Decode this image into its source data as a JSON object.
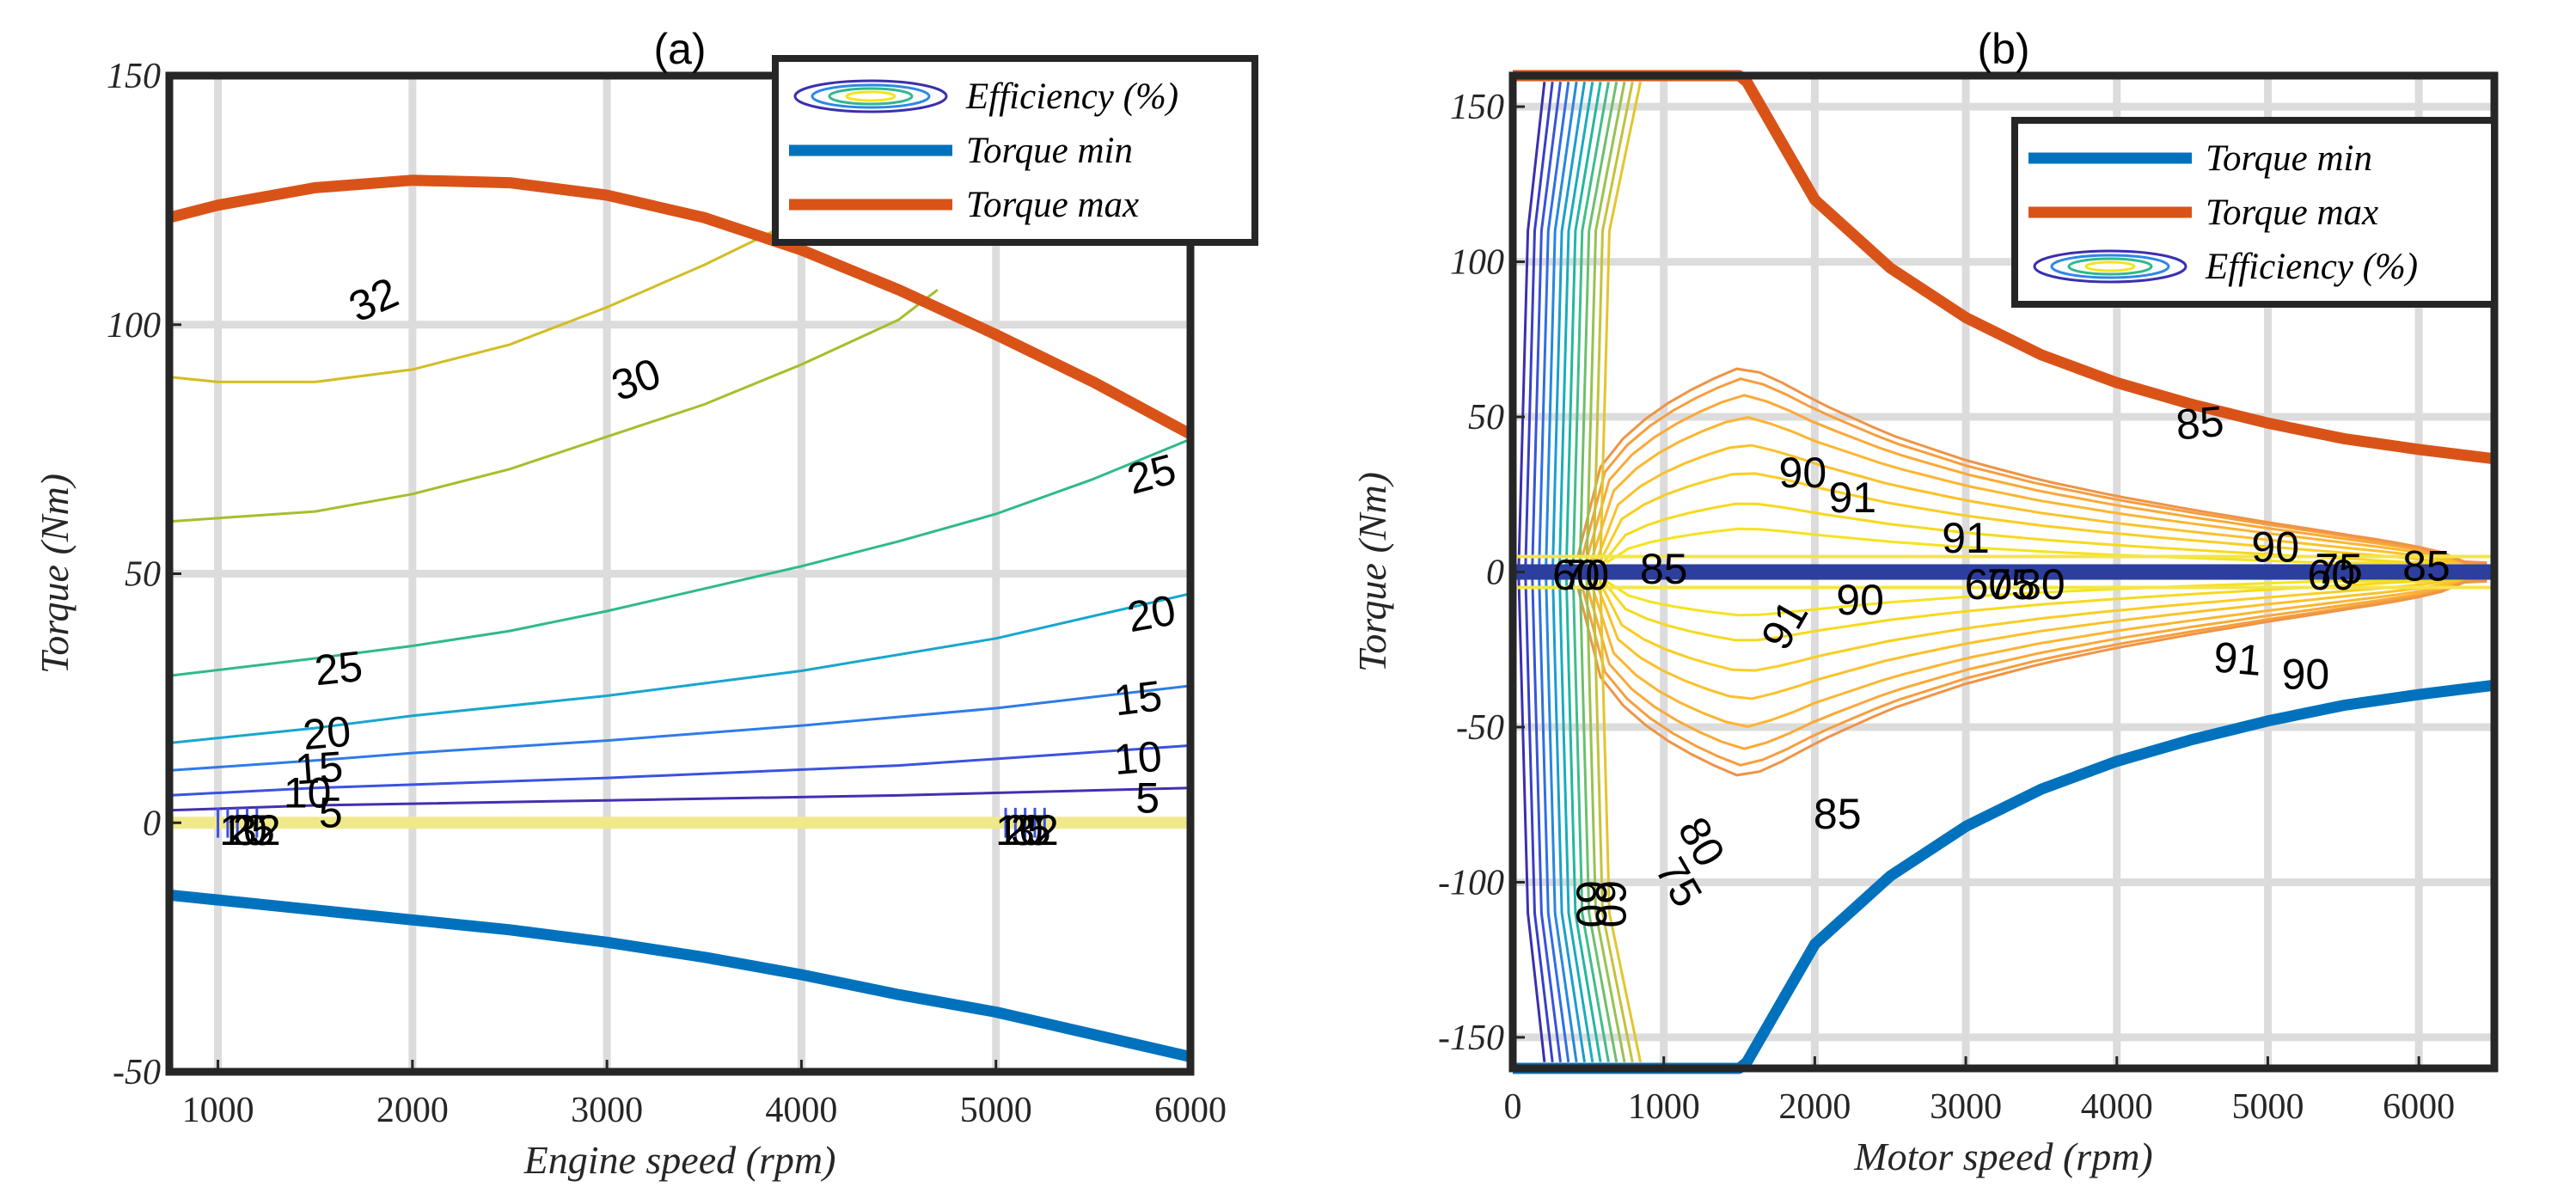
{
  "chart_data": [
    {
      "type": "line",
      "title": "(a)",
      "xlabel": "Engine speed (rpm)",
      "ylabel": "Torque (Nm)",
      "xlim": [
        750,
        6000
      ],
      "ylim": [
        -50,
        150
      ],
      "xticks": [
        1000,
        2000,
        3000,
        4000,
        5000,
        6000
      ],
      "yticks": [
        -50,
        0,
        50,
        100,
        150
      ],
      "grid": true,
      "legend_position": "top-right",
      "legend": [
        {
          "key": "efficiency",
          "label": "Efficiency (%)",
          "kind": "contour"
        },
        {
          "key": "min",
          "label": "Torque min",
          "kind": "line",
          "color": "#0072bd"
        },
        {
          "key": "max",
          "label": "Torque max",
          "kind": "line",
          "color": "#d95319"
        }
      ],
      "series": [
        {
          "name": "Torque max",
          "color": "#d95319",
          "width": 13,
          "x": [
            750,
            1000,
            1500,
            2000,
            2500,
            3000,
            3500,
            4000,
            4500,
            5000,
            5500,
            6000
          ],
          "y": [
            121.5,
            124,
            127.5,
            129,
            128.5,
            126,
            121.5,
            115,
            107,
            98,
            88.5,
            78
          ]
        },
        {
          "name": "Torque min",
          "color": "#0072bd",
          "width": 13,
          "x": [
            750,
            1000,
            1500,
            2000,
            2500,
            3000,
            3500,
            4000,
            4500,
            5000,
            5500,
            6000
          ],
          "y": [
            -14.5,
            -15.5,
            -17.5,
            -19.5,
            -21.5,
            -24,
            -27,
            -30.5,
            -34.5,
            -38,
            -42.5,
            -47
          ]
        }
      ],
      "contours": [
        {
          "level": 32,
          "color": "#d2bd23",
          "x": [
            750,
            1000,
            1500,
            2000,
            2500,
            3000,
            3500,
            4000
          ],
          "y": [
            89.5,
            88.5,
            88.5,
            91,
            96,
            103.5,
            112,
            121.5
          ]
        },
        {
          "level": 30,
          "color": "#a8bd2a",
          "x": [
            750,
            1500,
            2000,
            2500,
            3000,
            3500,
            4000,
            4500,
            4700
          ],
          "y": [
            60.5,
            62.5,
            66,
            71,
            77.5,
            84,
            92,
            101,
            107
          ]
        },
        {
          "level": 25,
          "color": "#2fb98d",
          "x": [
            750,
            1500,
            2000,
            2500,
            3000,
            3500,
            4000,
            4500,
            5000,
            5500,
            6000
          ],
          "y": [
            29.5,
            33,
            35.5,
            38.5,
            42.5,
            47,
            51.5,
            56.5,
            62,
            69,
            77
          ]
        },
        {
          "level": 20,
          "color": "#17a6cf",
          "x": [
            750,
            1500,
            2000,
            3000,
            4000,
            5000,
            6000
          ],
          "y": [
            16,
            19,
            21.5,
            25.5,
            30.5,
            37,
            46
          ]
        },
        {
          "level": 15,
          "color": "#2d7ce8",
          "x": [
            750,
            1500,
            2000,
            3000,
            4000,
            5000,
            6000
          ],
          "y": [
            10.5,
            12.5,
            14,
            16.5,
            19.5,
            23,
            27.5
          ]
        },
        {
          "level": 10,
          "color": "#3b52e0",
          "x": [
            750,
            1500,
            3000,
            4500,
            6000
          ],
          "y": [
            5.5,
            7,
            9,
            11.5,
            15.5
          ]
        },
        {
          "level": 5,
          "color": "#4330b0",
          "x": [
            750,
            1500,
            3000,
            4500,
            6000
          ],
          "y": [
            2.5,
            3.5,
            4.5,
            5.5,
            7
          ]
        }
      ],
      "annotations": [
        {
          "text": "32",
          "x": 1800,
          "y": 105,
          "rotate": -24
        },
        {
          "text": "30",
          "x": 3150,
          "y": 89,
          "rotate": -20
        },
        {
          "text": "25",
          "x": 5800,
          "y": 70,
          "rotate": -15
        },
        {
          "text": "25",
          "x": 1620,
          "y": 31,
          "rotate": -6
        },
        {
          "text": "20",
          "x": 5800,
          "y": 42,
          "rotate": -10
        },
        {
          "text": "20",
          "x": 1560,
          "y": 18,
          "rotate": -5
        },
        {
          "text": "15",
          "x": 5730,
          "y": 25,
          "rotate": -7
        },
        {
          "text": "15",
          "x": 1520,
          "y": 11,
          "rotate": -4
        },
        {
          "text": "10",
          "x": 5730,
          "y": 13,
          "rotate": -5
        },
        {
          "text": "10",
          "x": 1460,
          "y": 6,
          "rotate": 0
        },
        {
          "text": "5",
          "x": 5780,
          "y": 5,
          "rotate": 0
        },
        {
          "text": "5",
          "x": 1580,
          "y": 2,
          "rotate": 0
        },
        {
          "text": "32",
          "x": 1200,
          "y": -1.5,
          "rotate": 0
        },
        {
          "text": "25",
          "x": 1170,
          "y": -1.5,
          "rotate": 0
        },
        {
          "text": "10",
          "x": 1130,
          "y": -1.5,
          "rotate": 0
        },
        {
          "text": "32",
          "x": 5200,
          "y": -1.5,
          "rotate": 0
        },
        {
          "text": "25",
          "x": 5160,
          "y": -1.5,
          "rotate": 0
        },
        {
          "text": "10",
          "x": 5120,
          "y": -1.5,
          "rotate": 0
        }
      ]
    },
    {
      "type": "line",
      "title": "(b)",
      "xlabel": "Motor speed (rpm)",
      "ylabel": "Torque (Nm)",
      "xlim": [
        0,
        6500
      ],
      "ylim": [
        -160,
        160
      ],
      "xticks": [
        0,
        1000,
        2000,
        3000,
        4000,
        5000,
        6000
      ],
      "yticks": [
        -150,
        -100,
        -50,
        0,
        50,
        100,
        150
      ],
      "grid": true,
      "legend_position": "top-right",
      "legend": [
        {
          "key": "min",
          "label": "Torque min",
          "kind": "line",
          "color": "#0072bd"
        },
        {
          "key": "max",
          "label": "Torque max",
          "kind": "line",
          "color": "#d95319"
        },
        {
          "key": "efficiency",
          "label": "Efficiency (%)",
          "kind": "contour"
        }
      ],
      "series": [
        {
          "name": "Torque max",
          "color": "#d95319",
          "width": 13,
          "x": [
            0,
            1500,
            1550,
            2000,
            2500,
            3000,
            3500,
            4000,
            4500,
            5000,
            5500,
            6000,
            6500
          ],
          "y": [
            160,
            160,
            158,
            120,
            98,
            82,
            70,
            61,
            54,
            48,
            43,
            39.5,
            36.5
          ]
        },
        {
          "name": "Torque min",
          "color": "#0072bd",
          "width": 13,
          "x": [
            0,
            1500,
            1550,
            2000,
            2500,
            3000,
            3500,
            4000,
            4500,
            5000,
            5500,
            6000,
            6500
          ],
          "y": [
            -160,
            -160,
            -158,
            -120,
            -98,
            -82,
            -70,
            -61,
            -54,
            -48,
            -43,
            -39.5,
            -36.5
          ]
        }
      ],
      "annotations": [
        {
          "text": "85",
          "x": 4550,
          "y": 48,
          "rotate": -5
        },
        {
          "text": "90",
          "x": 1920,
          "y": 32,
          "rotate": 0
        },
        {
          "text": "91",
          "x": 2250,
          "y": 24,
          "rotate": 0
        },
        {
          "text": "91",
          "x": 3000,
          "y": 11,
          "rotate": 0
        },
        {
          "text": "90",
          "x": 5050,
          "y": 8,
          "rotate": 0
        },
        {
          "text": "85",
          "x": 1000,
          "y": 1,
          "rotate": 0
        },
        {
          "text": "85",
          "x": 6050,
          "y": 2,
          "rotate": 0
        },
        {
          "text": "60",
          "x": 420,
          "y": -1,
          "rotate": 0
        },
        {
          "text": "70",
          "x": 480,
          "y": -1,
          "rotate": 0
        },
        {
          "text": "60",
          "x": 5420,
          "y": -1,
          "rotate": 0
        },
        {
          "text": "75",
          "x": 5470,
          "y": 1,
          "rotate": 0
        },
        {
          "text": "60",
          "x": 3150,
          "y": -4,
          "rotate": 0
        },
        {
          "text": "75",
          "x": 3300,
          "y": -4,
          "rotate": 0
        },
        {
          "text": "80",
          "x": 3500,
          "y": -4,
          "rotate": 0
        },
        {
          "text": "90",
          "x": 2300,
          "y": -9,
          "rotate": 0
        },
        {
          "text": "91",
          "x": 1800,
          "y": -17,
          "rotate": -60
        },
        {
          "text": "91",
          "x": 4800,
          "y": -28,
          "rotate": 5
        },
        {
          "text": "90",
          "x": 5250,
          "y": -33,
          "rotate": 0
        },
        {
          "text": "85",
          "x": 2150,
          "y": -78,
          "rotate": 0
        },
        {
          "text": "80",
          "x": 1250,
          "y": -87,
          "rotate": 60
        },
        {
          "text": "75",
          "x": 1100,
          "y": -100,
          "rotate": 60
        },
        {
          "text": "60",
          "x": 650,
          "y": -107,
          "rotate": 90
        },
        {
          "text": "60",
          "x": 520,
          "y": -107,
          "rotate": 90
        }
      ]
    }
  ]
}
